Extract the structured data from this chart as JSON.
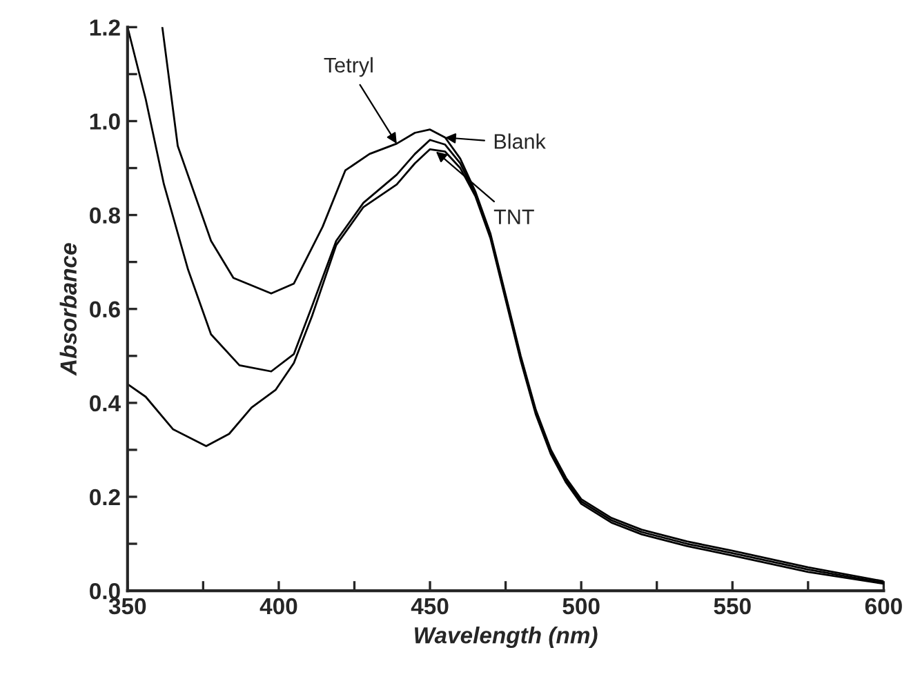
{
  "chart_data": {
    "type": "line",
    "xlabel": "Wavelength (nm)",
    "ylabel": "Absorbance",
    "xlim": [
      350,
      600
    ],
    "ylim": [
      0,
      1.2
    ],
    "xticks": [
      350,
      {
        "value": 375,
        "label": null
      },
      400,
      {
        "value": 425,
        "label": null
      },
      450,
      {
        "value": 475,
        "label": null
      },
      500,
      {
        "value": 525,
        "label": null
      },
      550,
      {
        "value": 575,
        "label": null
      },
      600
    ],
    "yticks": [
      {
        "value": 0,
        "label": "0.0"
      },
      {
        "value": 0.1,
        "label": null
      },
      0.2,
      {
        "value": 0.3,
        "label": null
      },
      0.4,
      {
        "value": 0.5,
        "label": null
      },
      0.6,
      {
        "value": 0.7,
        "label": null
      },
      0.8,
      {
        "value": 0.9,
        "label": null
      },
      {
        "value": 1.0,
        "label": "1.0"
      },
      {
        "value": 1.1,
        "label": null
      },
      1.2
    ],
    "grid": false,
    "legend": false,
    "marker": "none",
    "line_style": "solid",
    "series": [
      {
        "color": "#000000",
        "x": [
          361.5,
          366.6,
          377.6,
          385,
          397.5,
          405,
          414.5,
          422,
          430,
          439,
          445,
          450,
          455,
          460,
          465,
          470,
          475,
          480,
          485,
          490,
          495,
          500,
          510,
          520,
          535,
          550,
          575,
          600
        ],
        "values": [
          1.2,
          0.947,
          0.745,
          0.666,
          0.633,
          0.654,
          0.775,
          0.895,
          0.93,
          0.952,
          0.975,
          0.982,
          0.965,
          0.92,
          0.85,
          0.76,
          0.63,
          0.5,
          0.385,
          0.3,
          0.24,
          0.195,
          0.155,
          0.13,
          0.105,
          0.085,
          0.05,
          0.02
        ]
      },
      {
        "color": "#000000",
        "x": [
          350,
          356,
          362,
          370,
          377.6,
          387,
          397.5,
          405,
          411,
          419,
          428,
          439,
          445,
          450,
          455,
          460,
          465,
          470,
          475,
          480,
          485,
          490,
          495,
          500,
          510,
          520,
          535,
          550,
          575,
          600
        ],
        "values": [
          1.2,
          1.047,
          0.866,
          0.684,
          0.546,
          0.48,
          0.467,
          0.504,
          0.606,
          0.745,
          0.826,
          0.886,
          0.93,
          0.96,
          0.95,
          0.91,
          0.845,
          0.755,
          0.625,
          0.495,
          0.38,
          0.295,
          0.235,
          0.19,
          0.15,
          0.125,
          0.1,
          0.08,
          0.045,
          0.017
        ]
      },
      {
        "color": "#000000",
        "x": [
          350,
          356,
          365,
          376,
          383.6,
          391,
          399,
          405,
          411,
          419,
          428,
          439,
          445,
          450,
          455,
          460,
          465,
          470,
          475,
          480,
          485,
          490,
          495,
          500,
          510,
          520,
          535,
          550,
          575,
          600
        ],
        "values": [
          0.44,
          0.413,
          0.344,
          0.308,
          0.334,
          0.39,
          0.428,
          0.485,
          0.585,
          0.736,
          0.817,
          0.865,
          0.91,
          0.94,
          0.935,
          0.9,
          0.84,
          0.75,
          0.62,
          0.49,
          0.375,
          0.29,
          0.23,
          0.185,
          0.145,
          0.12,
          0.095,
          0.075,
          0.04,
          0.015
        ]
      }
    ],
    "annotations": [
      {
        "text": "Tetryl",
        "x": 439,
        "y": 0.952
      },
      {
        "text": "Blank",
        "x": 455,
        "y": 0.965
      },
      {
        "text": "TNT",
        "x": 452,
        "y": 0.935
      }
    ]
  }
}
